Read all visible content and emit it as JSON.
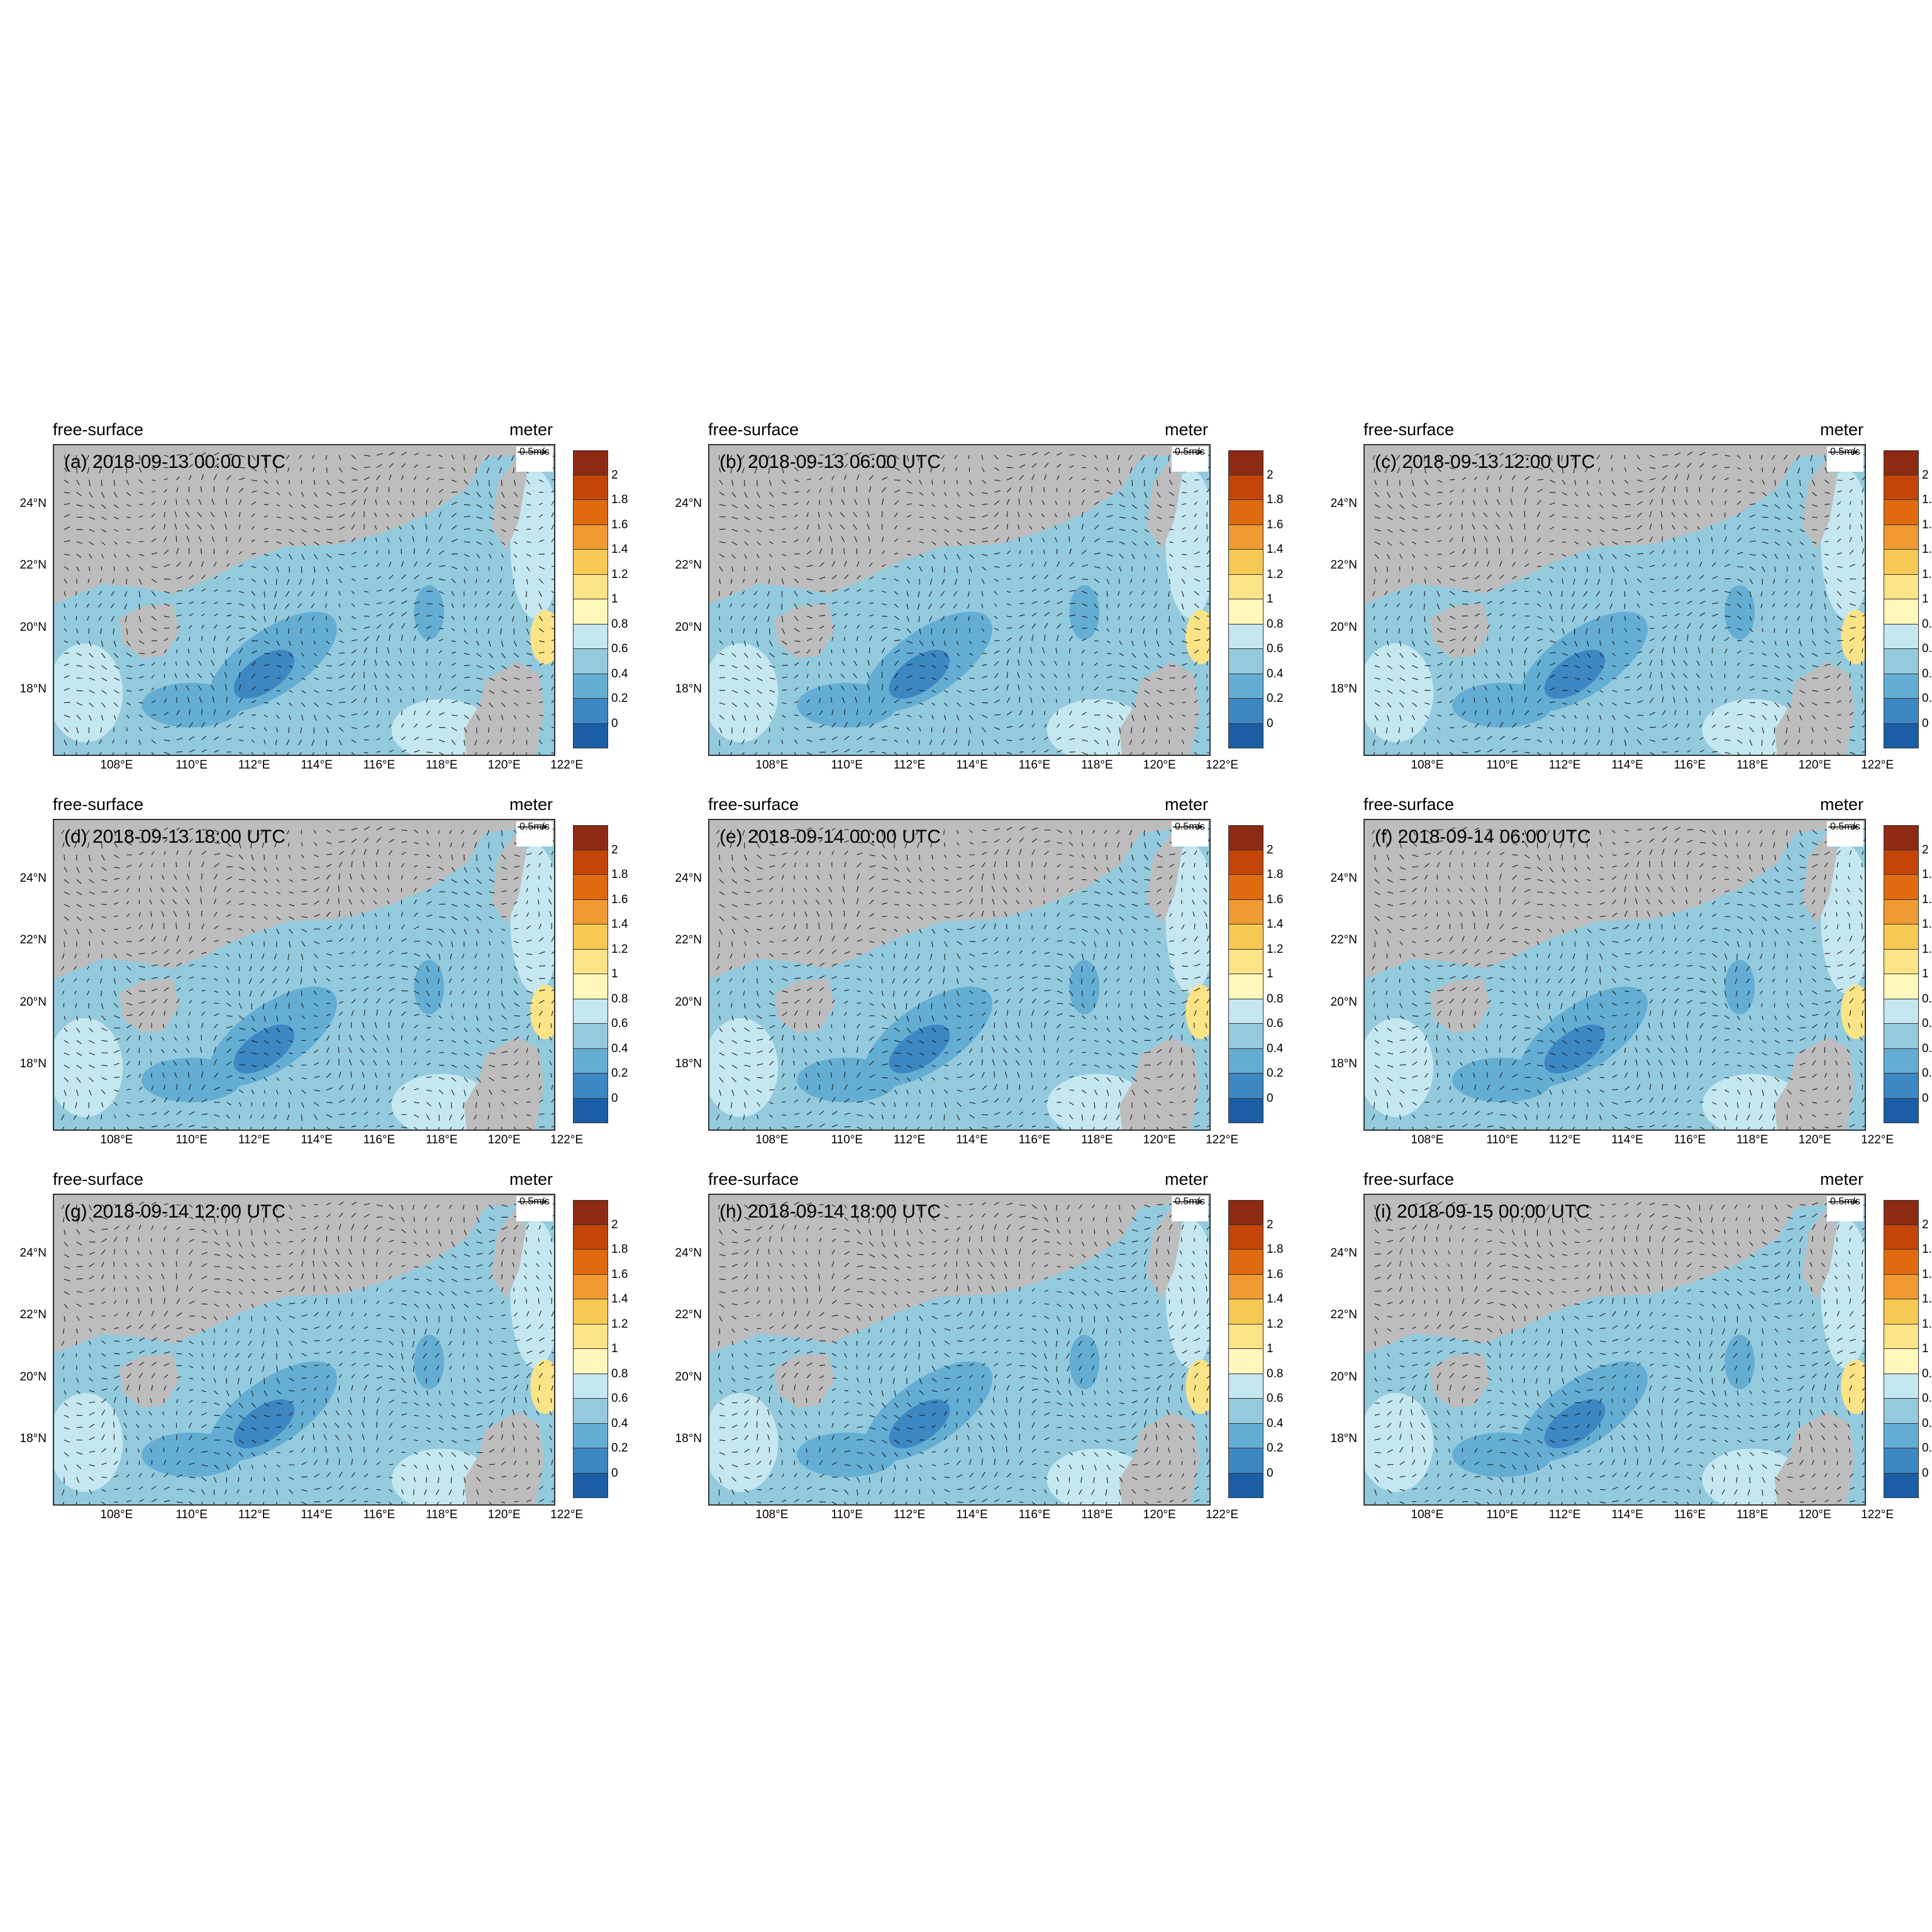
{
  "panel_header_left": "free-surface",
  "panel_header_right": "meter",
  "reference_vector_label": "0.5m/s",
  "lon_ticks": [
    "108°E",
    "110°E",
    "112°E",
    "114°E",
    "116°E",
    "118°E",
    "120°E",
    "122°E"
  ],
  "lat_ticks": [
    "24°N",
    "22°N",
    "20°N",
    "18°N"
  ],
  "colorbar_labels": [
    "2",
    "1.8",
    "1.6",
    "1.4",
    "1.2",
    "1",
    "0.8",
    "0.6",
    "0.4",
    "0.2",
    "0"
  ],
  "colorbar_colors": [
    "#8c2a14",
    "#c44507",
    "#e06a10",
    "#ef9a32",
    "#f5c954",
    "#fbe387",
    "#fff7bc",
    "#c5e7f0",
    "#93cade",
    "#64aed4",
    "#3d87c2",
    "#1b5ea6",
    "#0c3f85",
    "#052553"
  ],
  "colors": {
    "land": "#bdbdbd",
    "sea_base": "#93cade",
    "sea_light": "#c5e7f0",
    "sea_mid": "#64aed4",
    "sea_dark": "#3d87c2",
    "yellow": "#fbe387"
  },
  "panels": [
    {
      "id": "a",
      "title": "(a) 2018-09-13 00:00 UTC"
    },
    {
      "id": "b",
      "title": "(b) 2018-09-13 06:00 UTC"
    },
    {
      "id": "c",
      "title": "(c) 2018-09-13 12:00 UTC"
    },
    {
      "id": "d",
      "title": "(d) 2018-09-13 18:00 UTC"
    },
    {
      "id": "e",
      "title": "(e) 2018-09-14 00:00 UTC"
    },
    {
      "id": "f",
      "title": "(f) 2018-09-14 06:00 UTC"
    },
    {
      "id": "g",
      "title": "(g) 2018-09-14 12:00 UTC"
    },
    {
      "id": "h",
      "title": "(h) 2018-09-14 18:00 UTC"
    },
    {
      "id": "i",
      "title": "(i) 2018-09-15 00:00 UTC"
    }
  ]
}
